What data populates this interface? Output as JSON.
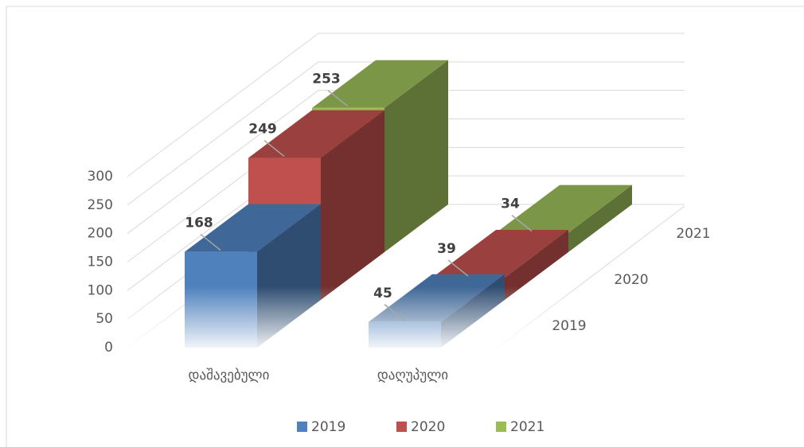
{
  "chart_data": {
    "type": "bar3d",
    "categories": [
      "დაშავებული",
      "დაღუპული"
    ],
    "series": [
      {
        "name": "2019",
        "color": "#4f81bd",
        "values": [
          168,
          45
        ]
      },
      {
        "name": "2020",
        "color": "#c0504d",
        "values": [
          249,
          39
        ]
      },
      {
        "name": "2021",
        "color": "#9bbb59",
        "values": [
          253,
          34
        ]
      }
    ],
    "ylim": [
      0,
      300
    ],
    "yticks": [
      0,
      50,
      100,
      150,
      200,
      250,
      300
    ],
    "grid": true,
    "legend": "bottom"
  }
}
